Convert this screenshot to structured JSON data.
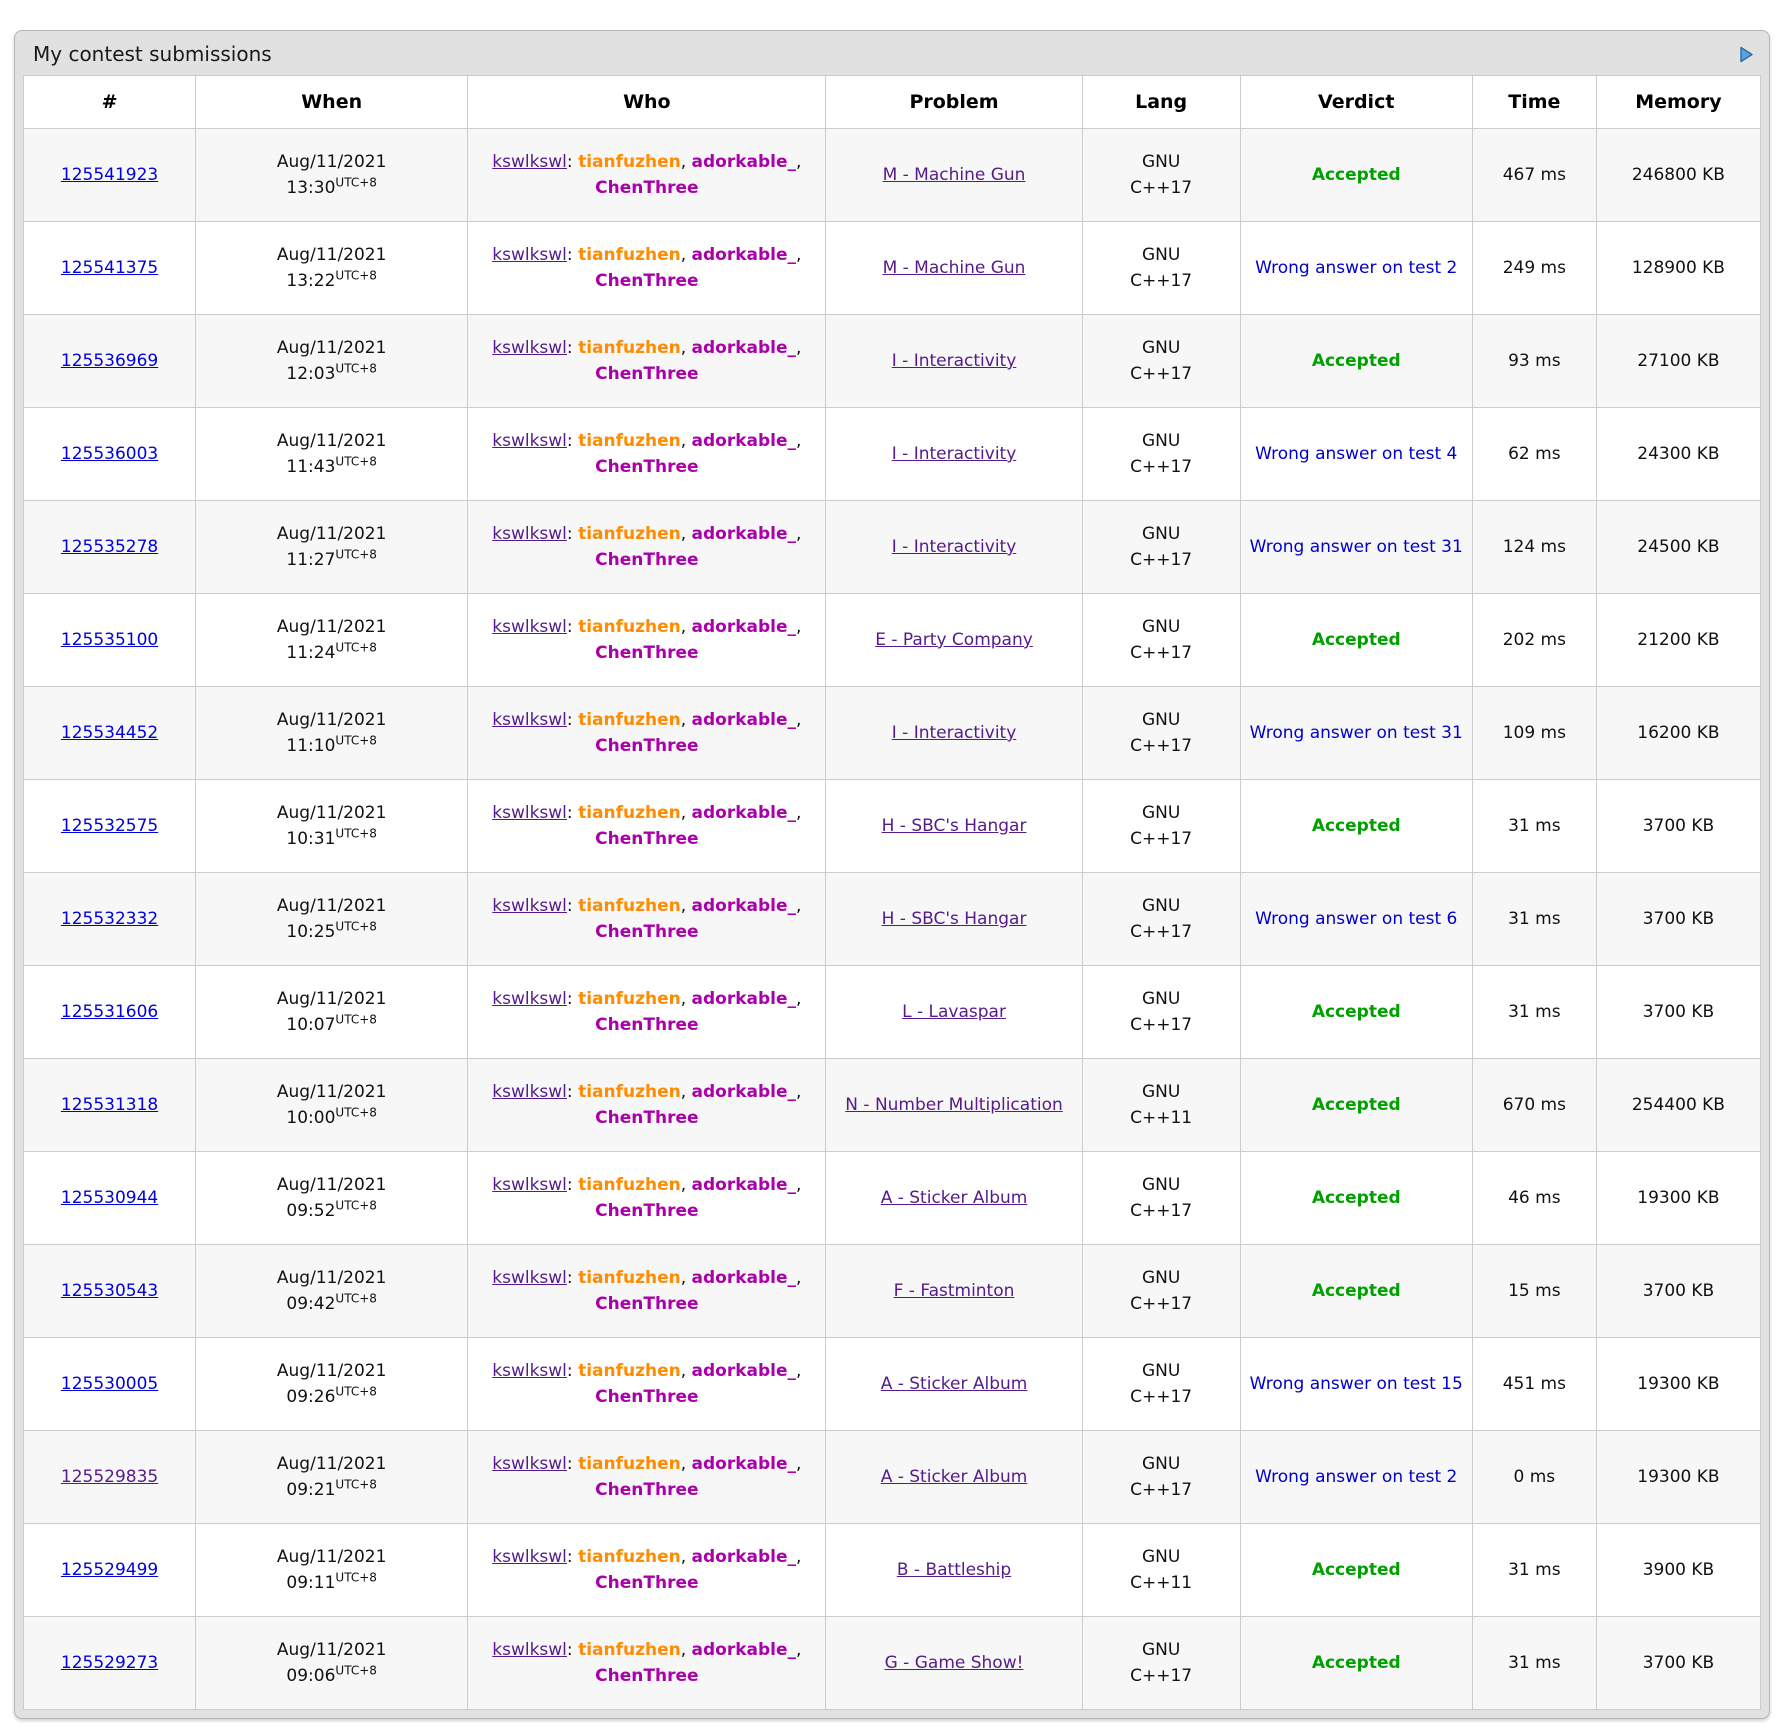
{
  "panel": {
    "title": "My contest submissions",
    "arrow_icon": "expand-arrow-icon"
  },
  "colors": {
    "link_blue": "#0000dd",
    "link_visited_purple": "#551a8b",
    "user_orange": "#ff8c00",
    "user_violet": "#aa00aa",
    "verdict_accepted_green": "#00a000",
    "verdict_rejected_blue": "#0000cc",
    "panel_background": "#e1e1e1",
    "arrow_blue": "#5ba3e0"
  },
  "table": {
    "columns": [
      "#",
      "When",
      "Who",
      "Problem",
      "Lang",
      "Verdict",
      "Time",
      "Memory"
    ],
    "who": {
      "team": "kswlkswl",
      "separator": ":",
      "members": [
        {
          "name": "tianfuzhen",
          "color": "orange"
        },
        {
          "name": "adorkable_",
          "color": "violet"
        },
        {
          "name": "ChenThree",
          "color": "violet"
        }
      ]
    },
    "rows": [
      {
        "id": "125541923",
        "id_visited": false,
        "when": {
          "date": "Aug/11/2021",
          "time": "13:30",
          "tz": "UTC+8"
        },
        "problem": "M - Machine Gun",
        "lang": "GNU C++17",
        "verdict": {
          "text": "Accepted",
          "status": "accepted"
        },
        "time": "467 ms",
        "memory": "246800 KB"
      },
      {
        "id": "125541375",
        "id_visited": false,
        "when": {
          "date": "Aug/11/2021",
          "time": "13:22",
          "tz": "UTC+8"
        },
        "problem": "M - Machine Gun",
        "lang": "GNU C++17",
        "verdict": {
          "text": "Wrong answer on test 2",
          "status": "rejected"
        },
        "time": "249 ms",
        "memory": "128900 KB"
      },
      {
        "id": "125536969",
        "id_visited": false,
        "when": {
          "date": "Aug/11/2021",
          "time": "12:03",
          "tz": "UTC+8"
        },
        "problem": "I - Interactivity",
        "lang": "GNU C++17",
        "verdict": {
          "text": "Accepted",
          "status": "accepted"
        },
        "time": "93 ms",
        "memory": "27100 KB"
      },
      {
        "id": "125536003",
        "id_visited": false,
        "when": {
          "date": "Aug/11/2021",
          "time": "11:43",
          "tz": "UTC+8"
        },
        "problem": "I - Interactivity",
        "lang": "GNU C++17",
        "verdict": {
          "text": "Wrong answer on test 4",
          "status": "rejected"
        },
        "time": "62 ms",
        "memory": "24300 KB"
      },
      {
        "id": "125535278",
        "id_visited": false,
        "when": {
          "date": "Aug/11/2021",
          "time": "11:27",
          "tz": "UTC+8"
        },
        "problem": "I - Interactivity",
        "lang": "GNU C++17",
        "verdict": {
          "text": "Wrong answer on test 31",
          "status": "rejected"
        },
        "time": "124 ms",
        "memory": "24500 KB"
      },
      {
        "id": "125535100",
        "id_visited": false,
        "when": {
          "date": "Aug/11/2021",
          "time": "11:24",
          "tz": "UTC+8"
        },
        "problem": "E - Party Company",
        "lang": "GNU C++17",
        "verdict": {
          "text": "Accepted",
          "status": "accepted"
        },
        "time": "202 ms",
        "memory": "21200 KB"
      },
      {
        "id": "125534452",
        "id_visited": false,
        "when": {
          "date": "Aug/11/2021",
          "time": "11:10",
          "tz": "UTC+8"
        },
        "problem": "I - Interactivity",
        "lang": "GNU C++17",
        "verdict": {
          "text": "Wrong answer on test 31",
          "status": "rejected"
        },
        "time": "109 ms",
        "memory": "16200 KB"
      },
      {
        "id": "125532575",
        "id_visited": false,
        "when": {
          "date": "Aug/11/2021",
          "time": "10:31",
          "tz": "UTC+8"
        },
        "problem": "H - SBC's Hangar",
        "lang": "GNU C++17",
        "verdict": {
          "text": "Accepted",
          "status": "accepted"
        },
        "time": "31 ms",
        "memory": "3700 KB"
      },
      {
        "id": "125532332",
        "id_visited": false,
        "when": {
          "date": "Aug/11/2021",
          "time": "10:25",
          "tz": "UTC+8"
        },
        "problem": "H - SBC's Hangar",
        "lang": "GNU C++17",
        "verdict": {
          "text": "Wrong answer on test 6",
          "status": "rejected"
        },
        "time": "31 ms",
        "memory": "3700 KB"
      },
      {
        "id": "125531606",
        "id_visited": false,
        "when": {
          "date": "Aug/11/2021",
          "time": "10:07",
          "tz": "UTC+8"
        },
        "problem": "L - Lavaspar",
        "lang": "GNU C++17",
        "verdict": {
          "text": "Accepted",
          "status": "accepted"
        },
        "time": "31 ms",
        "memory": "3700 KB"
      },
      {
        "id": "125531318",
        "id_visited": false,
        "when": {
          "date": "Aug/11/2021",
          "time": "10:00",
          "tz": "UTC+8"
        },
        "problem": "N - Number Multiplication",
        "lang": "GNU C++11",
        "verdict": {
          "text": "Accepted",
          "status": "accepted"
        },
        "time": "670 ms",
        "memory": "254400 KB"
      },
      {
        "id": "125530944",
        "id_visited": false,
        "when": {
          "date": "Aug/11/2021",
          "time": "09:52",
          "tz": "UTC+8"
        },
        "problem": "A - Sticker Album",
        "lang": "GNU C++17",
        "verdict": {
          "text": "Accepted",
          "status": "accepted"
        },
        "time": "46 ms",
        "memory": "19300 KB"
      },
      {
        "id": "125530543",
        "id_visited": false,
        "when": {
          "date": "Aug/11/2021",
          "time": "09:42",
          "tz": "UTC+8"
        },
        "problem": "F - Fastminton",
        "lang": "GNU C++17",
        "verdict": {
          "text": "Accepted",
          "status": "accepted"
        },
        "time": "15 ms",
        "memory": "3700 KB"
      },
      {
        "id": "125530005",
        "id_visited": false,
        "when": {
          "date": "Aug/11/2021",
          "time": "09:26",
          "tz": "UTC+8"
        },
        "problem": "A - Sticker Album",
        "lang": "GNU C++17",
        "verdict": {
          "text": "Wrong answer on test 15",
          "status": "rejected"
        },
        "time": "451 ms",
        "memory": "19300 KB"
      },
      {
        "id": "125529835",
        "id_visited": true,
        "when": {
          "date": "Aug/11/2021",
          "time": "09:21",
          "tz": "UTC+8"
        },
        "problem": "A - Sticker Album",
        "lang": "GNU C++17",
        "verdict": {
          "text": "Wrong answer on test 2",
          "status": "rejected"
        },
        "time": "0 ms",
        "memory": "19300 KB"
      },
      {
        "id": "125529499",
        "id_visited": false,
        "when": {
          "date": "Aug/11/2021",
          "time": "09:11",
          "tz": "UTC+8"
        },
        "problem": "B - Battleship",
        "lang": "GNU C++11",
        "verdict": {
          "text": "Accepted",
          "status": "accepted"
        },
        "time": "31 ms",
        "memory": "3900 KB"
      },
      {
        "id": "125529273",
        "id_visited": false,
        "when": {
          "date": "Aug/11/2021",
          "time": "09:06",
          "tz": "UTC+8"
        },
        "problem": "G - Game Show!",
        "lang": "GNU C++17",
        "verdict": {
          "text": "Accepted",
          "status": "accepted"
        },
        "time": "31 ms",
        "memory": "3700 KB"
      }
    ]
  }
}
